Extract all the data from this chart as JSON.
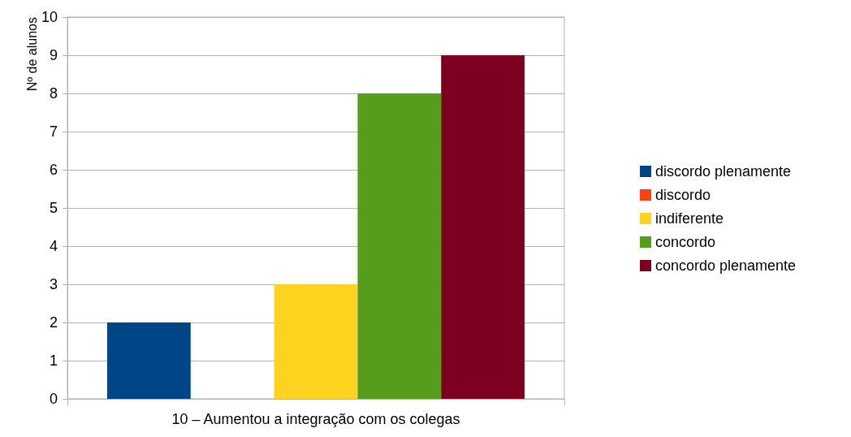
{
  "chart_data": {
    "type": "bar",
    "ylabel": "Nº de alunos",
    "categories": [
      "10 – Aumentou a integração com os colegas"
    ],
    "series": [
      {
        "name": "discordo plenamente",
        "color": "#004586",
        "values": [
          2
        ]
      },
      {
        "name": "discordo",
        "color": "#ff420e",
        "values": [
          0
        ]
      },
      {
        "name": "indiferente",
        "color": "#ffd320",
        "values": [
          3
        ]
      },
      {
        "name": "concordo",
        "color": "#579d1c",
        "values": [
          8
        ]
      },
      {
        "name": "concordo plenamente",
        "color": "#7e0021",
        "values": [
          9
        ]
      }
    ],
    "ylim": [
      0,
      10
    ],
    "yticks": [
      0,
      1,
      2,
      3,
      4,
      5,
      6,
      7,
      8,
      9,
      10
    ],
    "grid": "y",
    "legend": "right"
  }
}
